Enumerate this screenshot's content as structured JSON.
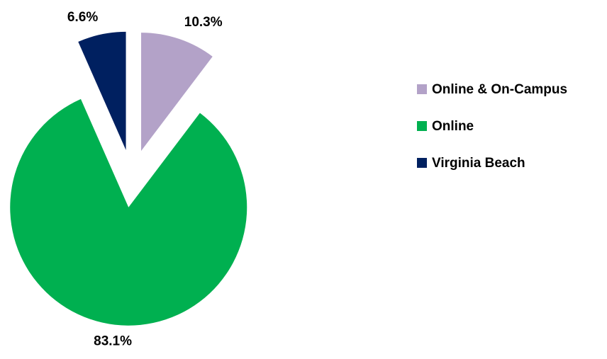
{
  "chart_data": {
    "type": "pie",
    "categories": [
      "Online & On-Campus",
      "Online",
      "Virginia Beach"
    ],
    "values": [
      10.3,
      83.1,
      6.6
    ],
    "value_labels": [
      "10.3%",
      "83.1%",
      "6.6%"
    ],
    "colors": [
      "#b3a2c8",
      "#00b050",
      "#002060"
    ],
    "exploded": true,
    "legend": "right"
  }
}
